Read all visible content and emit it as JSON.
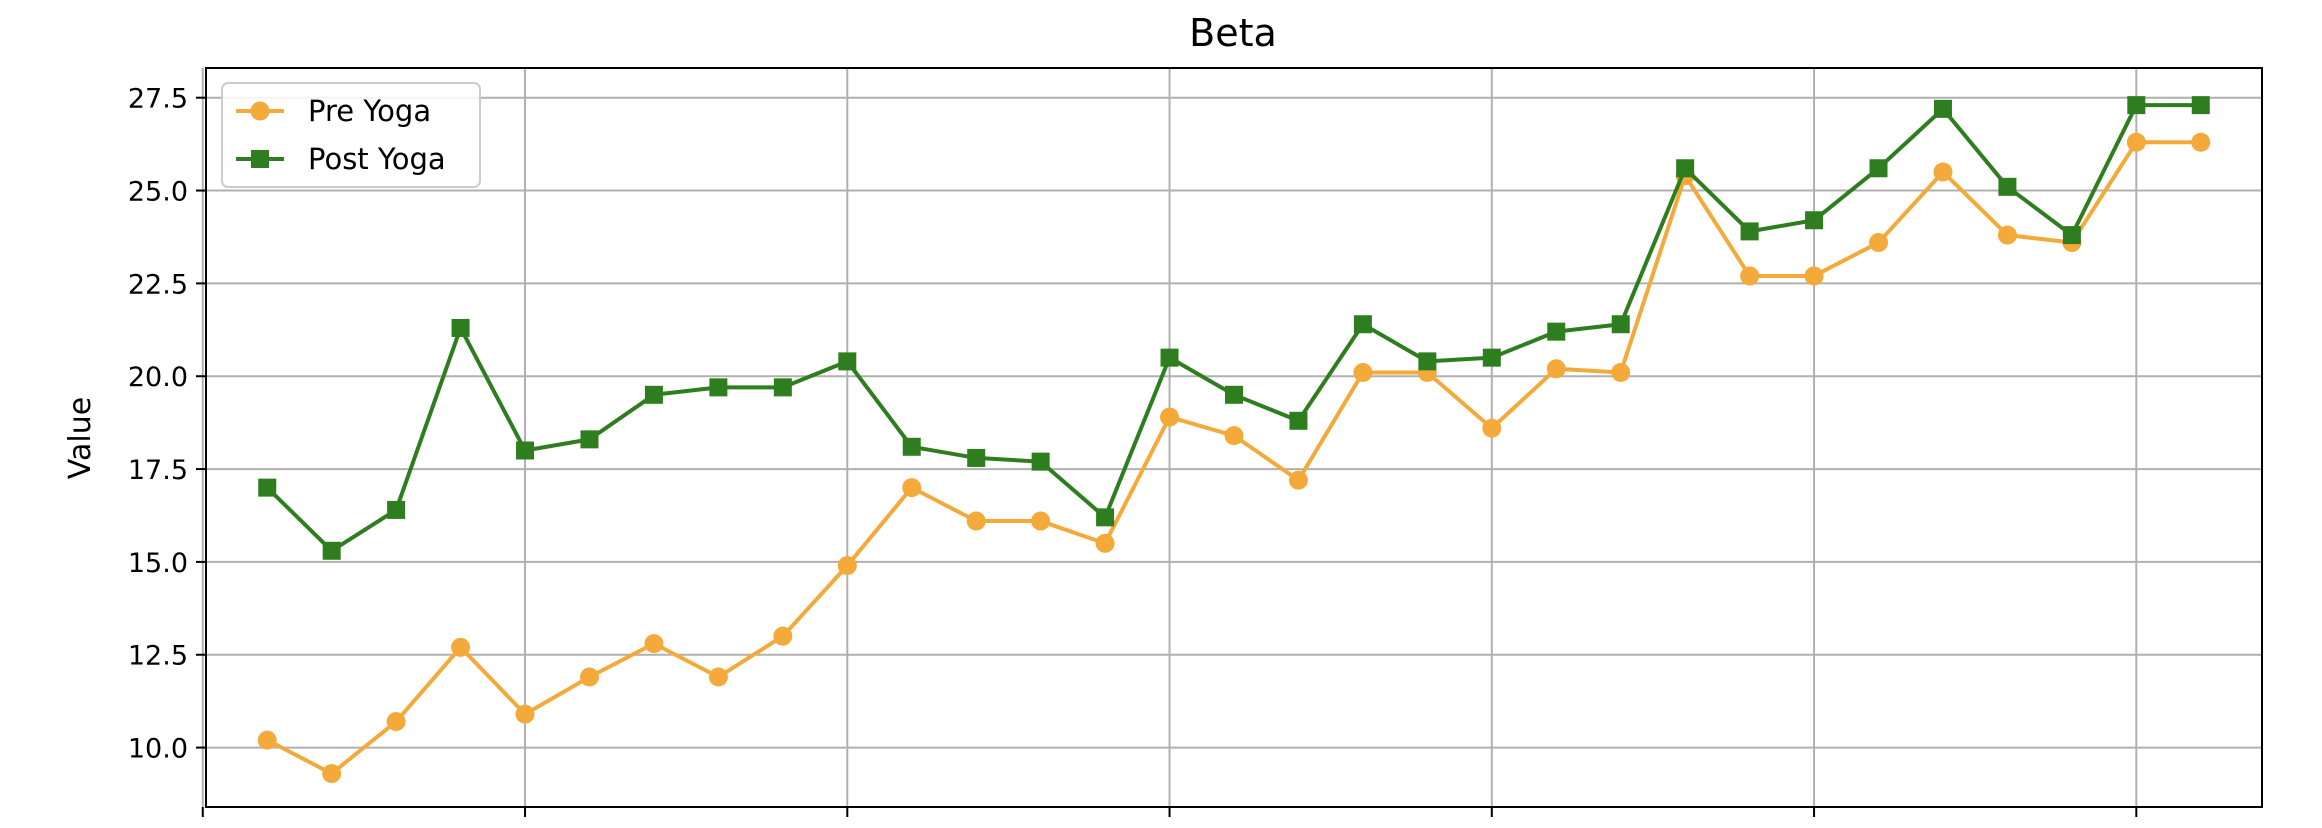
{
  "chart_data": {
    "type": "line",
    "title": "Beta",
    "xlabel": "",
    "ylabel": "Value",
    "x": [
      1,
      2,
      3,
      4,
      5,
      6,
      7,
      8,
      9,
      10,
      11,
      12,
      13,
      14,
      15,
      16,
      17,
      18,
      19,
      20,
      21,
      22,
      23,
      24,
      25,
      26,
      27,
      28,
      29,
      30,
      31
    ],
    "xlim": [
      0.05,
      31.95
    ],
    "ylim": [
      8.4,
      28.3
    ],
    "yticks": [
      10.0,
      12.5,
      15.0,
      17.5,
      20.0,
      22.5,
      25.0,
      27.5
    ],
    "ytick_labels": [
      "10.0",
      "12.5",
      "15.0",
      "17.5",
      "20.0",
      "22.5",
      "25.0",
      "27.5"
    ],
    "xticks": [
      0,
      5,
      10,
      15,
      20,
      25,
      30
    ],
    "grid": true,
    "legend_position": "top-left",
    "series": [
      {
        "name": "Pre Yoga",
        "color": "#f4a93b",
        "marker": "circle",
        "values": [
          10.2,
          9.3,
          10.7,
          12.7,
          10.9,
          11.9,
          12.8,
          11.9,
          13.0,
          14.9,
          17.0,
          16.1,
          16.1,
          15.5,
          18.9,
          18.4,
          17.2,
          20.1,
          20.1,
          18.6,
          20.2,
          20.1,
          25.4,
          22.7,
          22.7,
          23.6,
          25.5,
          23.8,
          23.6,
          26.3,
          26.3
        ]
      },
      {
        "name": "Post Yoga",
        "color": "#2e7d1e",
        "marker": "square",
        "values": [
          17.0,
          15.3,
          16.4,
          21.3,
          18.0,
          18.3,
          19.5,
          19.7,
          19.7,
          20.4,
          18.1,
          17.8,
          17.7,
          16.2,
          20.5,
          19.5,
          18.8,
          21.4,
          20.4,
          20.5,
          21.2,
          21.4,
          25.6,
          23.9,
          24.2,
          25.6,
          27.2,
          25.1,
          23.8,
          27.3,
          27.3
        ]
      }
    ]
  }
}
